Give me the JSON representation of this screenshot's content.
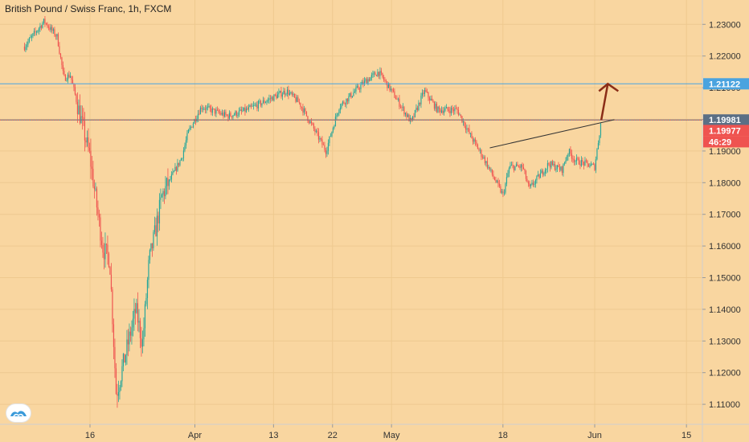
{
  "header": {
    "title": "British Pound / Swiss Franc, 1h, FXCM"
  },
  "colors": {
    "background": "#f9d6a0",
    "up": "#26a69a",
    "down": "#ef5350",
    "trendline": "#333333",
    "arrow": "#8b2d17",
    "blue_line": "#4aa3df",
    "price_line": "#5b6f85"
  },
  "price_labels": {
    "blue": "1.21122",
    "gray": "1.19981",
    "red": "1.19977",
    "countdown": "46:29"
  },
  "chart_data": {
    "type": "candlestick",
    "title": "British Pound / Swiss Franc, 1h, FXCM",
    "xlabel": "",
    "ylabel": "",
    "ylim": [
      1.105,
      1.236
    ],
    "y_ticks": [
      "1.23000",
      "1.22000",
      "1.21000",
      "1.20000",
      "1.19000",
      "1.18000",
      "1.17000",
      "1.16000",
      "1.15000",
      "1.14000",
      "1.13000",
      "1.12000",
      "1.11000"
    ],
    "x_ticks": [
      "16",
      "Apr",
      "13",
      "22",
      "May",
      "18",
      "Jun",
      "15"
    ],
    "horizontal_lines": [
      {
        "name": "blue",
        "value": 1.21122
      },
      {
        "name": "gray",
        "value": 1.19981
      }
    ],
    "trendline": [
      {
        "x": "May 16",
        "y": 1.191
      },
      {
        "x": "Jun 4",
        "y": 1.1999
      }
    ],
    "arrow": [
      {
        "x": "Jun 2",
        "y": 1.1998
      },
      {
        "x": "Jun 3",
        "y": 1.2112
      }
    ],
    "last_price": 1.19977,
    "series": [
      {
        "values": [
          {
            "x": "Mar 6",
            "y": 1.223
          },
          {
            "x": "Mar 9",
            "y": 1.231
          },
          {
            "x": "Mar 11",
            "y": 1.226
          },
          {
            "x": "Mar 12",
            "y": 1.213
          },
          {
            "x": "Mar 13",
            "y": 1.214
          },
          {
            "x": "Mar 16",
            "y": 1.188
          },
          {
            "x": "Mar 17",
            "y": 1.173
          },
          {
            "x": "Mar 18",
            "y": 1.159
          },
          {
            "x": "Mar 19",
            "y": 1.156
          },
          {
            "x": "Mar 20",
            "y": 1.113
          },
          {
            "x": "Mar 23",
            "y": 1.14
          },
          {
            "x": "Mar 24",
            "y": 1.129
          },
          {
            "x": "Mar 25",
            "y": 1.155
          },
          {
            "x": "Mar 26",
            "y": 1.165
          },
          {
            "x": "Mar 27",
            "y": 1.176
          },
          {
            "x": "Mar 30",
            "y": 1.188
          },
          {
            "x": "Mar 31",
            "y": 1.196
          },
          {
            "x": "Apr 2",
            "y": 1.204
          },
          {
            "x": "Apr 6",
            "y": 1.201
          },
          {
            "x": "Apr 9",
            "y": 1.203
          },
          {
            "x": "Apr 13",
            "y": 1.207
          },
          {
            "x": "Apr 15",
            "y": 1.209
          },
          {
            "x": "Apr 17",
            "y": 1.205
          },
          {
            "x": "Apr 21",
            "y": 1.19
          },
          {
            "x": "Apr 23",
            "y": 1.204
          },
          {
            "x": "Apr 27",
            "y": 1.212
          },
          {
            "x": "Apr 29",
            "y": 1.215
          },
          {
            "x": "May 1",
            "y": 1.209
          },
          {
            "x": "May 4",
            "y": 1.199
          },
          {
            "x": "May 6",
            "y": 1.209
          },
          {
            "x": "May 8",
            "y": 1.203
          },
          {
            "x": "May 11",
            "y": 1.203
          },
          {
            "x": "May 13",
            "y": 1.195
          },
          {
            "x": "May 15",
            "y": 1.188
          },
          {
            "x": "May 18",
            "y": 1.176
          },
          {
            "x": "May 19",
            "y": 1.185
          },
          {
            "x": "May 21",
            "y": 1.185
          },
          {
            "x": "May 22",
            "y": 1.178
          },
          {
            "x": "May 25",
            "y": 1.186
          },
          {
            "x": "May 27",
            "y": 1.184
          },
          {
            "x": "May 28",
            "y": 1.19
          },
          {
            "x": "May 29",
            "y": 1.187
          },
          {
            "x": "Jun 1",
            "y": 1.185
          },
          {
            "x": "Jun 2",
            "y": 1.1998
          }
        ]
      }
    ]
  }
}
